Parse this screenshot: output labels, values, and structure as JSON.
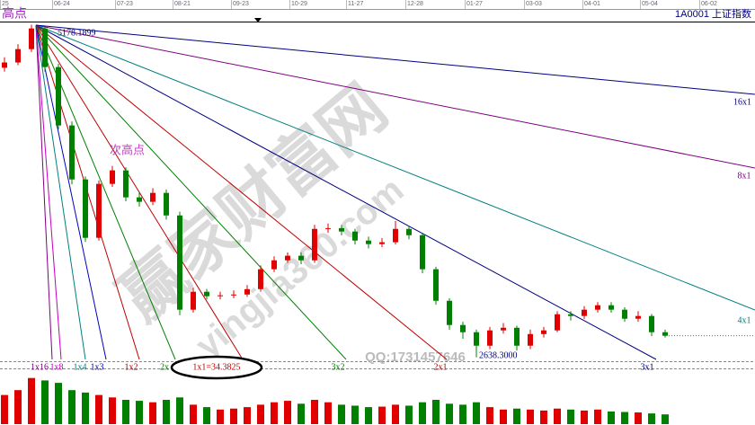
{
  "header": {
    "symbol": "1A0001 上证指数",
    "dates": [
      "25",
      "06-24",
      "07-23",
      "08-21",
      "09-23",
      "10-29",
      "11-27",
      "12-28",
      "01-27",
      "03-03",
      "04-01",
      "05-04",
      "06-02"
    ]
  },
  "chart_data": {
    "type": "candlestick",
    "open": [
      4850,
      4890,
      4992,
      5150,
      4855,
      4409,
      3997,
      3551,
      3963,
      4066,
      3860,
      3826,
      3894,
      3722,
      3002,
      3139,
      3105,
      3112,
      3118,
      3159,
      3311,
      3379,
      3414,
      3379,
      3619,
      3625,
      3599,
      3530,
      3503,
      3517,
      3619,
      3571,
      3311,
      3070,
      2885,
      2830,
      2727,
      2844,
      2864,
      2727,
      2816,
      2844,
      2967,
      2954,
      3002,
      3036,
      3002,
      2933,
      2954,
      2830
    ],
    "high": [
      4930,
      5030,
      5178.1899,
      5160,
      4880,
      4440,
      4020,
      3990,
      4100,
      4090,
      3900,
      3930,
      3920,
      3750,
      3170,
      3160,
      3140,
      3150,
      3190,
      3340,
      3410,
      3440,
      3440,
      3650,
      3660,
      3650,
      3620,
      3560,
      3550,
      3680,
      3640,
      3590,
      3330,
      3090,
      2910,
      2850,
      2870,
      2900,
      2880,
      2850,
      2870,
      2990,
      2990,
      3030,
      3060,
      3060,
      3020,
      2990,
      2970,
      2850
    ],
    "low": [
      4820,
      4870,
      4970,
      4820,
      4380,
      3960,
      3520,
      3530,
      3940,
      3830,
      3790,
      3800,
      3690,
      2960,
      2980,
      3080,
      3080,
      3090,
      3100,
      3140,
      3290,
      3360,
      3350,
      3360,
      3590,
      3570,
      3500,
      3470,
      3480,
      3500,
      3540,
      3280,
      3040,
      2850,
      2780,
      2638.3,
      2700,
      2820,
      2690,
      2700,
      2790,
      2830,
      2920,
      2930,
      2980,
      2980,
      2910,
      2910,
      2800,
      2790
    ],
    "close": [
      4890,
      4992,
      5150,
      4855,
      4409,
      3997,
      3551,
      3963,
      4066,
      3860,
      3826,
      3894,
      3722,
      3002,
      3139,
      3105,
      3112,
      3118,
      3159,
      3311,
      3379,
      3414,
      3379,
      3619,
      3625,
      3599,
      3530,
      3503,
      3517,
      3619,
      3571,
      3311,
      3070,
      2885,
      2830,
      2727,
      2844,
      2864,
      2727,
      2816,
      2844,
      2967,
      2954,
      3002,
      3036,
      3002,
      2933,
      2954,
      2830,
      2803
    ],
    "volume": [
      60,
      70,
      95,
      90,
      85,
      70,
      65,
      60,
      55,
      50,
      48,
      45,
      50,
      55,
      40,
      35,
      30,
      32,
      35,
      40,
      45,
      48,
      42,
      50,
      45,
      40,
      38,
      35,
      36,
      40,
      38,
      45,
      50,
      42,
      40,
      45,
      35,
      30,
      32,
      30,
      28,
      32,
      30,
      28,
      30,
      26,
      25,
      24,
      22,
      20
    ],
    "ylim": [
      2540,
      5230
    ],
    "vlim": [
      0,
      100
    ],
    "up_color": "#e00000",
    "down_color": "#008000",
    "annotations": {
      "high": "高点",
      "second_high": "次高点",
      "peak": "5178.1899",
      "trough": "2638.3000"
    },
    "gann": [
      {
        "label": "1x16",
        "color": "#800080"
      },
      {
        "label": "1x8",
        "color": "#c000c0"
      },
      {
        "label": "1x4",
        "color": "#008080"
      },
      {
        "label": "1x3",
        "color": "#0000c0"
      },
      {
        "label": "1x2",
        "color": "#c00000"
      },
      {
        "label": "2x",
        "color": "#008000"
      },
      {
        "label": "1x1=34.3825",
        "color": "#c00000"
      },
      {
        "label": "3x2",
        "color": "#008000"
      },
      {
        "label": "2x1",
        "color": "#c00000"
      },
      {
        "label": "3x1",
        "color": "#000080"
      },
      {
        "label": "4x1",
        "color": "#008080"
      },
      {
        "label": "8x1",
        "color": "#800080"
      },
      {
        "label": "16x1",
        "color": "#000080"
      }
    ],
    "watermarks": [
      "赢家财富网",
      "yingjia360.com",
      "QQ:1731457646"
    ]
  }
}
